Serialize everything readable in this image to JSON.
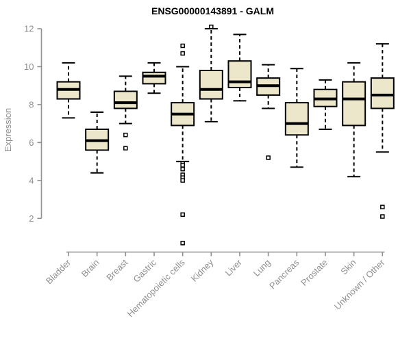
{
  "colors": {
    "background": "#ffffff",
    "title": "#000000",
    "axis": "#8f8f8f",
    "tick_label": "#8f8f8f",
    "box_fill": "#ece6cb",
    "box_stroke": "#000000",
    "median": "#000000",
    "whisker": "#000000",
    "outlier_stroke": "#000000",
    "outlier_fill": "#ffffff"
  },
  "chart_data": {
    "type": "boxplot",
    "title": "ENSG00000143891 - GALM",
    "xlabel": "",
    "ylabel": "Expression",
    "ylim": [
      2,
      12
    ],
    "yticks": [
      2,
      4,
      6,
      8,
      10,
      12
    ],
    "grid": "off",
    "categories": [
      "Bladder",
      "Brain",
      "Breast",
      "Gastric",
      "Hematopoietic cells",
      "Kidney",
      "Liver",
      "Lung",
      "Pancreas",
      "Prostate",
      "Skin",
      "Unknown / Other"
    ],
    "series": [
      {
        "category": "Bladder",
        "whisker_low": 7.3,
        "q1": 8.3,
        "median": 8.8,
        "q3": 9.2,
        "whisker_high": 10.2,
        "outliers": []
      },
      {
        "category": "Brain",
        "whisker_low": 4.4,
        "q1": 5.6,
        "median": 6.1,
        "q3": 6.7,
        "whisker_high": 7.6,
        "outliers": []
      },
      {
        "category": "Breast",
        "whisker_low": 7.0,
        "q1": 7.8,
        "median": 8.1,
        "q3": 8.7,
        "whisker_high": 9.5,
        "outliers": [
          6.4,
          5.7
        ]
      },
      {
        "category": "Gastric",
        "whisker_low": 8.6,
        "q1": 9.1,
        "median": 9.5,
        "q3": 9.7,
        "whisker_high": 10.2,
        "outliers": []
      },
      {
        "category": "Hematopoietic cells",
        "whisker_low": 5.0,
        "q1": 6.9,
        "median": 7.5,
        "q3": 8.1,
        "whisker_high": 10.0,
        "outliers": [
          11.1,
          10.7,
          4.9,
          4.8,
          4.6,
          4.3,
          4.15,
          4.0,
          2.2,
          0.7
        ]
      },
      {
        "category": "Kidney",
        "whisker_low": 7.1,
        "q1": 8.3,
        "median": 8.8,
        "q3": 9.8,
        "whisker_high": 12.0,
        "outliers": [
          12.1
        ]
      },
      {
        "category": "Liver",
        "whisker_low": 8.2,
        "q1": 8.9,
        "median": 9.2,
        "q3": 10.3,
        "whisker_high": 11.7,
        "outliers": []
      },
      {
        "category": "Lung",
        "whisker_low": 7.8,
        "q1": 8.5,
        "median": 9.0,
        "q3": 9.4,
        "whisker_high": 10.1,
        "outliers": [
          5.2
        ]
      },
      {
        "category": "Pancreas",
        "whisker_low": 4.7,
        "q1": 6.4,
        "median": 7.0,
        "q3": 8.1,
        "whisker_high": 9.9,
        "outliers": []
      },
      {
        "category": "Prostate",
        "whisker_low": 6.7,
        "q1": 7.9,
        "median": 8.3,
        "q3": 8.8,
        "whisker_high": 9.3,
        "outliers": []
      },
      {
        "category": "Skin",
        "whisker_low": 4.2,
        "q1": 6.9,
        "median": 8.3,
        "q3": 9.2,
        "whisker_high": 10.2,
        "outliers": []
      },
      {
        "category": "Unknown / Other",
        "whisker_low": 5.5,
        "q1": 7.8,
        "median": 8.5,
        "q3": 9.4,
        "whisker_high": 11.2,
        "outliers": [
          2.6,
          2.1
        ]
      }
    ]
  }
}
